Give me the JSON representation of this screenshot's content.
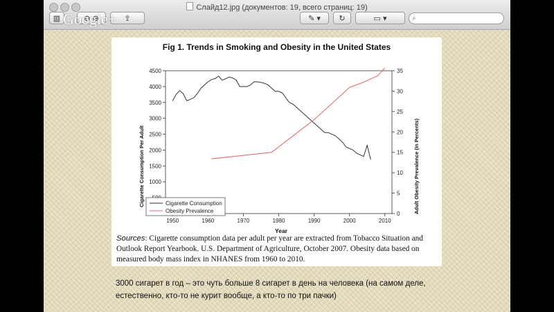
{
  "window": {
    "title": "Слайд12.jpg (документов: 19, всего страниц: 19)",
    "search_placeholder": "",
    "overlay_logo": "Google+"
  },
  "slide": {
    "figure_title": "Fig 1. Trends in Smoking and Obesity in the United States",
    "sources_label": "Sources",
    "sources_text": ": Cigarette consumption data per adult per year are extracted from Tobacco Situation and Outlook Report Yearbook. U.S. Department of Agriculture, October 2007. Obesity data based on measured body mass index in NHANES from 1960 to 2010.",
    "caption": "3000 сигарет в год – это чуть больше 8 сигарет в день на человека (на самом деле, естественно, кто-то не курит вообще, а кто-то по три пачки)"
  },
  "chart_data": {
    "type": "line",
    "title": "Fig 1. Trends in Smoking and Obesity in the United States",
    "xlabel": "Year",
    "ylabel": "Cigarette Consumption Per Adult",
    "y2label": "Adult Obesity Prevalence (In Percents)",
    "xlim": [
      1948,
      2012
    ],
    "ylim": [
      0,
      4500
    ],
    "y2lim": [
      0,
      35
    ],
    "xticks": [
      1950,
      1960,
      1970,
      1980,
      1990,
      2000,
      2010
    ],
    "yticks": [
      0,
      500,
      1000,
      1500,
      2000,
      2500,
      3000,
      3500,
      4000,
      4500
    ],
    "y2ticks": [
      0,
      5,
      10,
      15,
      20,
      25,
      30,
      35
    ],
    "grid": false,
    "legend": "bottom-left",
    "series": [
      {
        "name": "Cigarette Consumption",
        "axis": "left",
        "color": "#333333",
        "x": [
          1950,
          1951,
          1952,
          1953,
          1954,
          1955,
          1956,
          1957,
          1958,
          1959,
          1960,
          1961,
          1962,
          1963,
          1964,
          1965,
          1966,
          1967,
          1968,
          1969,
          1970,
          1971,
          1972,
          1973,
          1974,
          1975,
          1976,
          1977,
          1978,
          1979,
          1980,
          1981,
          1982,
          1983,
          1984,
          1985,
          1986,
          1987,
          1988,
          1989,
          1990,
          1991,
          1992,
          1993,
          1994,
          1995,
          1996,
          1997,
          1998,
          1999,
          2000,
          2001,
          2002,
          2003,
          2004,
          2005,
          2006
        ],
        "y": [
          3550,
          3750,
          3870,
          3780,
          3550,
          3600,
          3650,
          3780,
          3950,
          4050,
          4150,
          4220,
          4250,
          4330,
          4200,
          4250,
          4300,
          4270,
          4200,
          4000,
          4000,
          4000,
          4050,
          4150,
          4150,
          4130,
          4100,
          4050,
          3950,
          3850,
          3850,
          3800,
          3650,
          3500,
          3450,
          3350,
          3250,
          3150,
          3050,
          2950,
          2850,
          2750,
          2650,
          2550,
          2550,
          2500,
          2450,
          2350,
          2250,
          2100,
          2050,
          2000,
          1900,
          1850,
          1800,
          2150,
          1700
        ]
      },
      {
        "name": "Obesity Prevalence",
        "axis": "right",
        "color": "#e07070",
        "x": [
          1961,
          1978,
          1990,
          2000,
          2004,
          2008,
          2010
        ],
        "y": [
          13.4,
          15.0,
          23.0,
          30.9,
          32.2,
          33.8,
          35.7
        ]
      }
    ]
  }
}
